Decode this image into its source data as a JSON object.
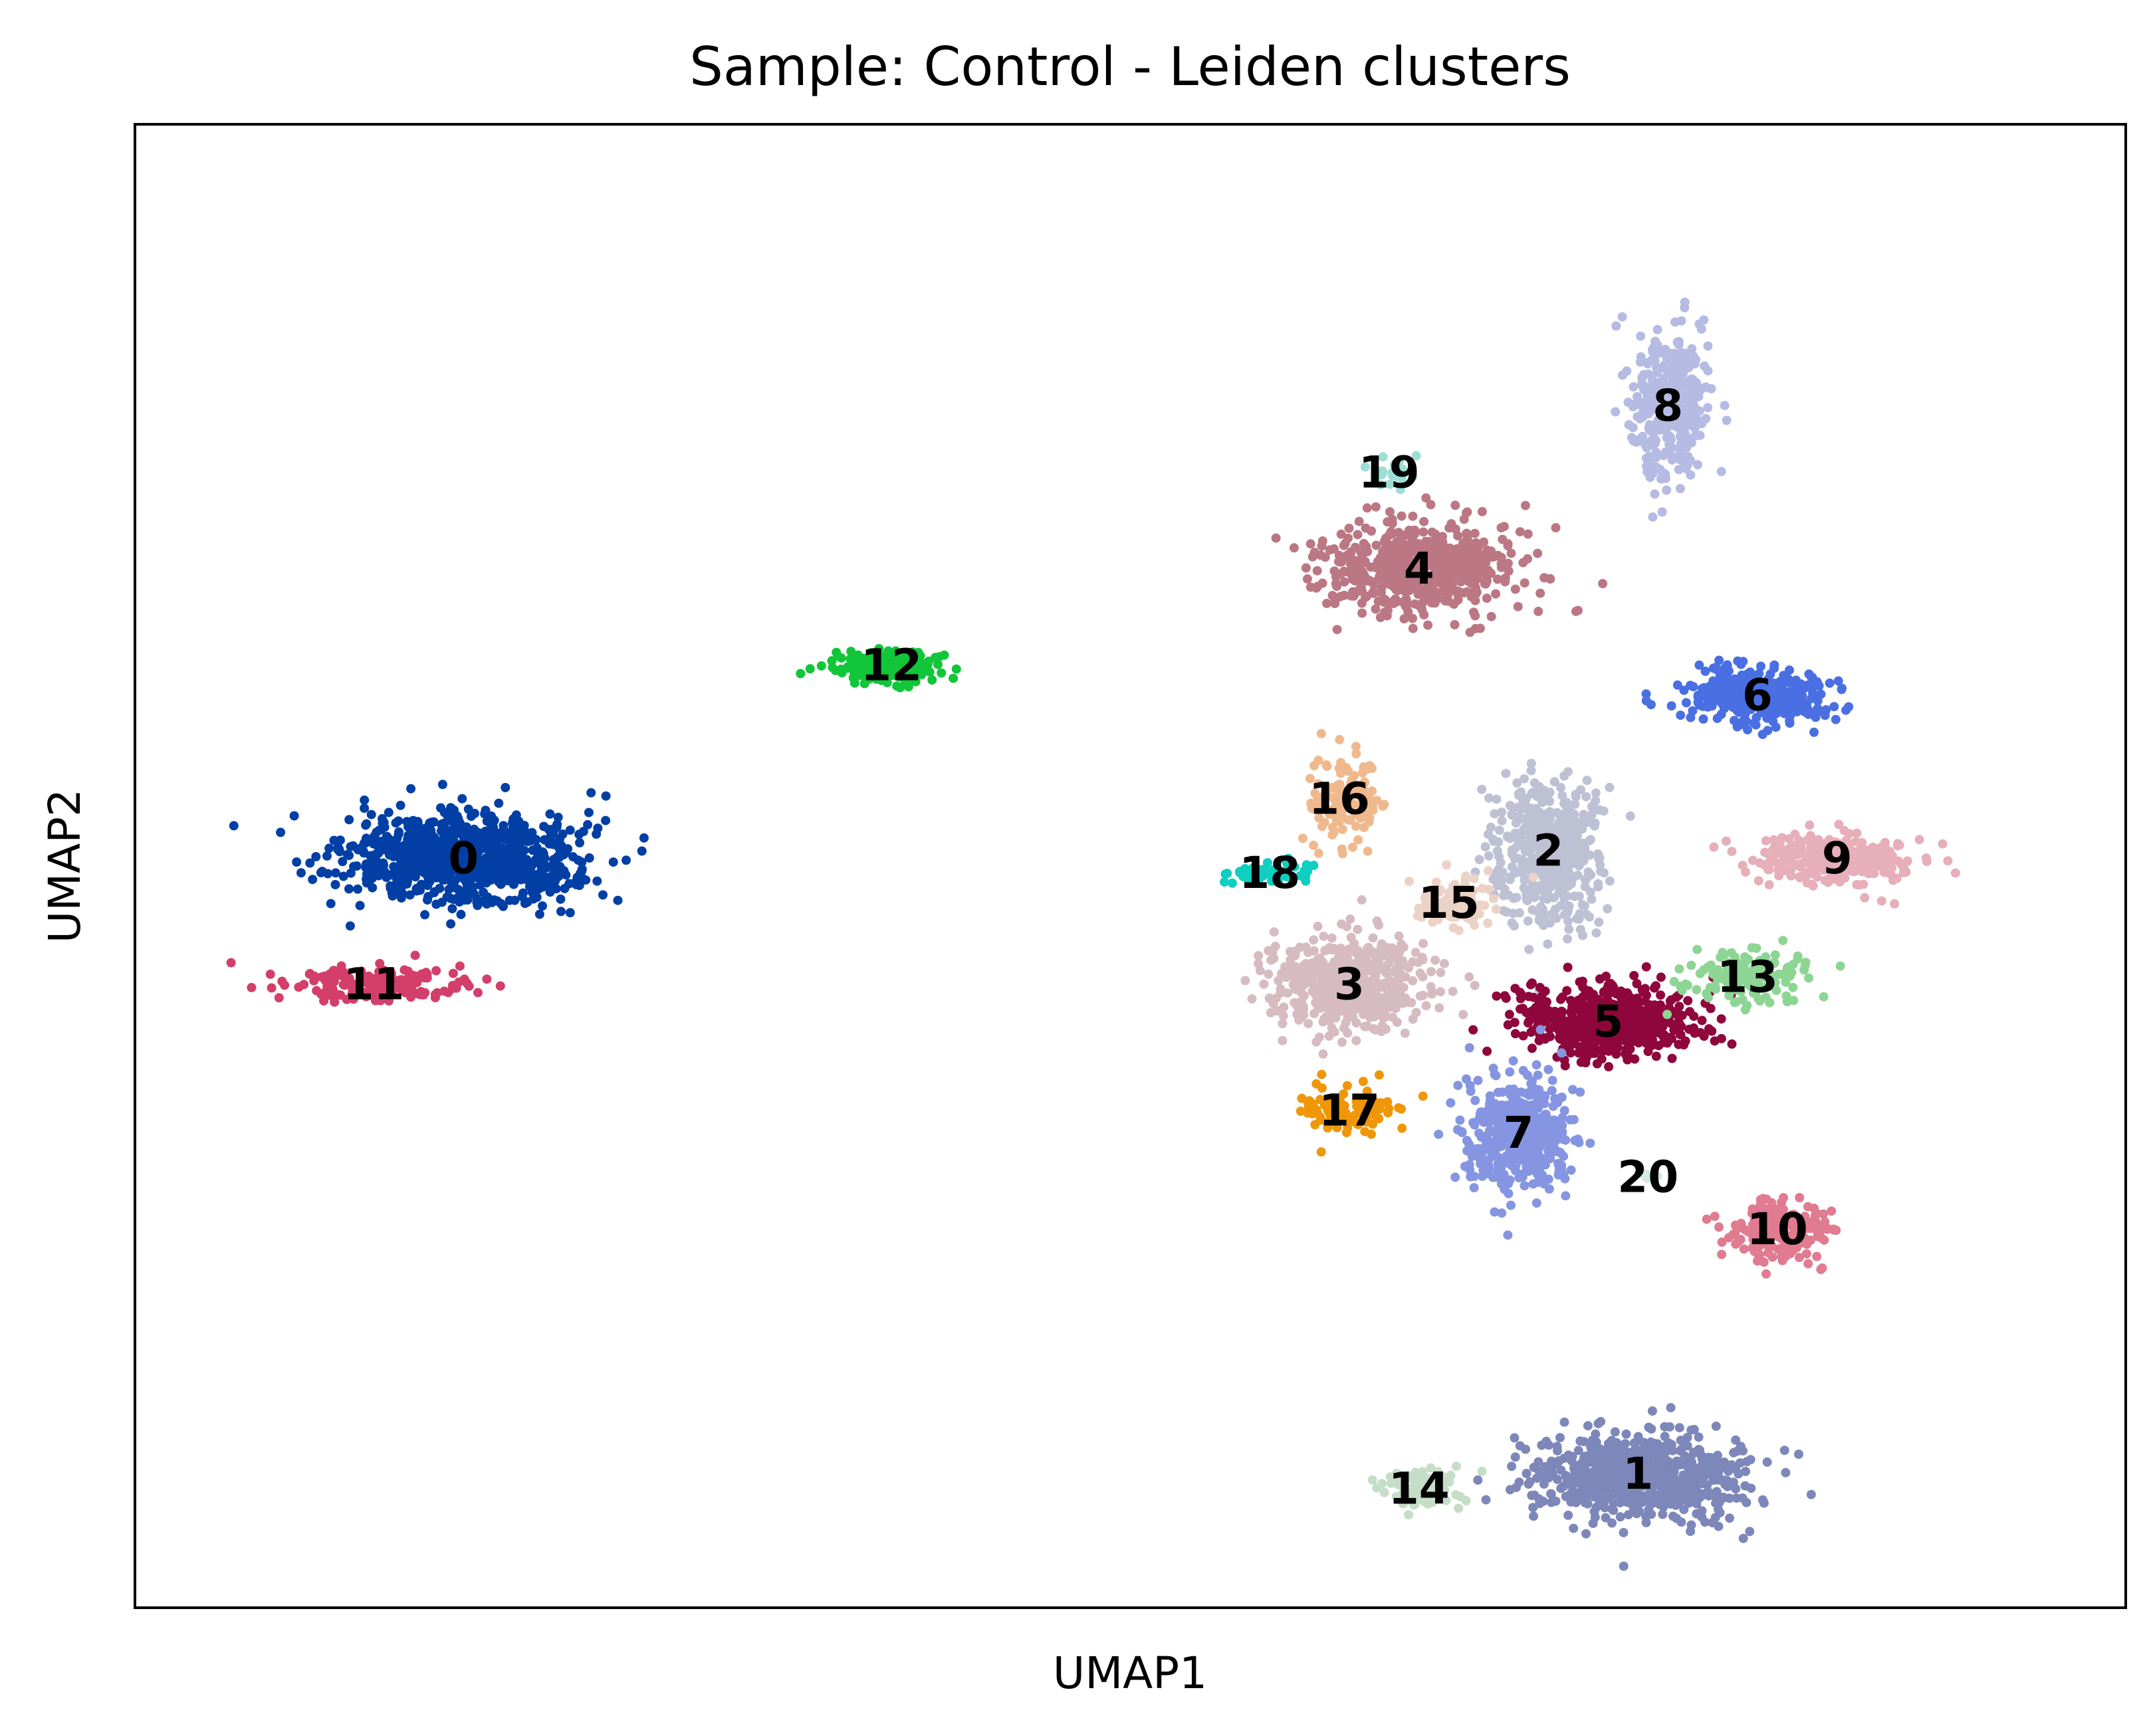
{
  "chart_data": {
    "type": "scatter",
    "title": "Sample: Control - Leiden clusters",
    "xlabel": "UMAP1",
    "ylabel": "UMAP2",
    "xlim": [
      -10.0,
      10.0
    ],
    "ylim": [
      -10.0,
      10.0
    ],
    "grid": false,
    "axis_ticks": false,
    "legend": "on data",
    "clusters": [
      {
        "name": "0",
        "color": "#023fa5",
        "center": [
          -6.7,
          0.1
        ],
        "spread": [
          1.05,
          0.55
        ],
        "n": 900
      },
      {
        "name": "1",
        "color": "#7d87b9",
        "center": [
          5.1,
          -8.2
        ],
        "spread": [
          0.95,
          0.55
        ],
        "n": 700
      },
      {
        "name": "2",
        "color": "#bec1d4",
        "center": [
          4.2,
          0.2
        ],
        "spread": [
          0.45,
          0.85
        ],
        "n": 500
      },
      {
        "name": "3",
        "color": "#d6bcc0",
        "center": [
          2.2,
          -1.6
        ],
        "spread": [
          0.75,
          0.55
        ],
        "n": 550
      },
      {
        "name": "4",
        "color": "#bb7784",
        "center": [
          2.9,
          4.0
        ],
        "spread": [
          0.85,
          0.55
        ],
        "n": 600
      },
      {
        "name": "5",
        "color": "#8e063b",
        "center": [
          4.8,
          -2.1
        ],
        "spread": [
          0.8,
          0.45
        ],
        "n": 550
      },
      {
        "name": "6",
        "color": "#4a6fe3",
        "center": [
          6.3,
          2.3
        ],
        "spread": [
          0.65,
          0.35
        ],
        "n": 350
      },
      {
        "name": "7",
        "color": "#8595e1",
        "center": [
          3.9,
          -3.6
        ],
        "spread": [
          0.5,
          0.7
        ],
        "n": 450
      },
      {
        "name": "8",
        "color": "#b5bbe3",
        "center": [
          5.4,
          6.2
        ],
        "spread": [
          0.35,
          0.9
        ],
        "n": 350
      },
      {
        "name": "9",
        "color": "#e6afb9",
        "center": [
          7.1,
          0.1
        ],
        "spread": [
          0.75,
          0.3
        ],
        "n": 300
      },
      {
        "name": "10",
        "color": "#e07b91",
        "center": [
          6.5,
          -4.9
        ],
        "spread": [
          0.45,
          0.4
        ],
        "n": 200
      },
      {
        "name": "11",
        "color": "#d33f6a",
        "center": [
          -7.6,
          -1.6
        ],
        "spread": [
          0.85,
          0.2
        ],
        "n": 180
      },
      {
        "name": "12",
        "color": "#11c638",
        "center": [
          -2.4,
          2.7
        ],
        "spread": [
          0.5,
          0.2
        ],
        "n": 200
      },
      {
        "name": "13",
        "color": "#8dd593",
        "center": [
          6.2,
          -1.5
        ],
        "spread": [
          0.55,
          0.35
        ],
        "n": 150
      },
      {
        "name": "14",
        "color": "#c6dec7",
        "center": [
          2.9,
          -8.4
        ],
        "spread": [
          0.35,
          0.25
        ],
        "n": 100
      },
      {
        "name": "15",
        "color": "#ead3c6",
        "center": [
          3.2,
          -0.5
        ],
        "spread": [
          0.4,
          0.3
        ],
        "n": 100
      },
      {
        "name": "16",
        "color": "#f0b98d",
        "center": [
          2.1,
          0.9
        ],
        "spread": [
          0.35,
          0.55
        ],
        "n": 120
      },
      {
        "name": "17",
        "color": "#ef9708",
        "center": [
          2.2,
          -3.3
        ],
        "spread": [
          0.45,
          0.3
        ],
        "n": 100
      },
      {
        "name": "18",
        "color": "#0fcfc0",
        "center": [
          1.4,
          -0.1
        ],
        "spread": [
          0.45,
          0.12
        ],
        "n": 60
      },
      {
        "name": "19",
        "color": "#9cded6",
        "center": [
          2.6,
          5.3
        ],
        "spread": [
          0.2,
          0.25
        ],
        "n": 20
      },
      {
        "name": "20",
        "color": "#d5eae7",
        "center": [
          5.2,
          -4.2
        ],
        "spread": [
          0.1,
          0.1
        ],
        "n": 5
      }
    ]
  }
}
